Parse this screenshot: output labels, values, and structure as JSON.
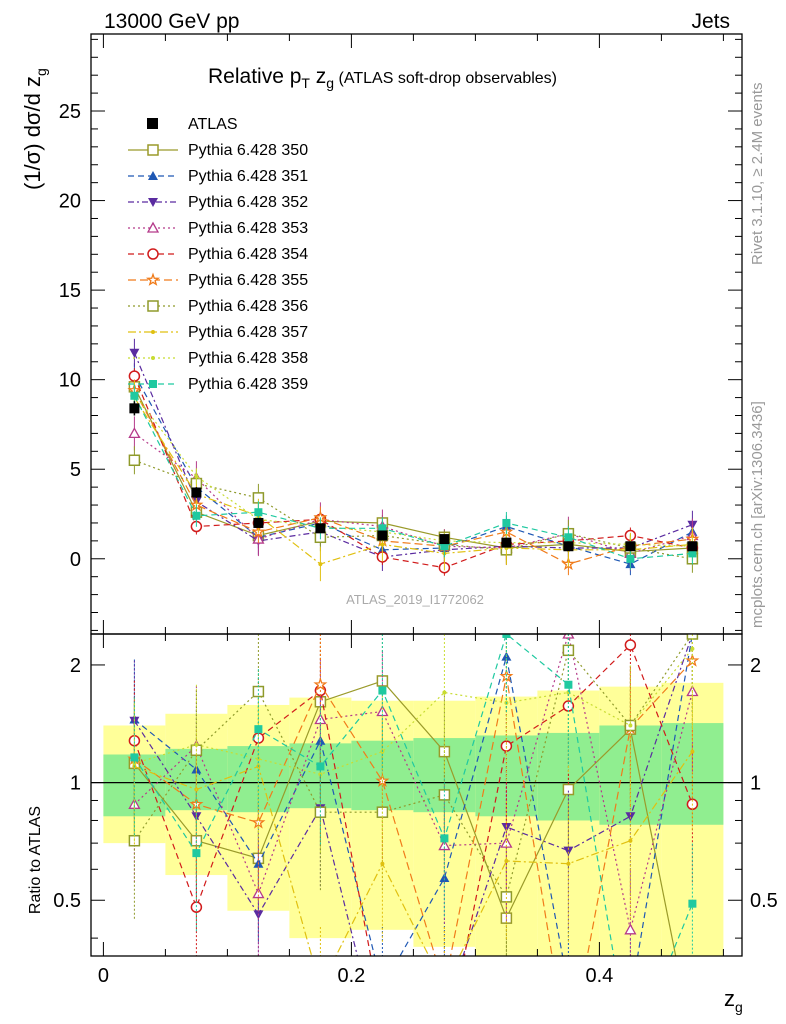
{
  "header": {
    "energy": "13000 GeV pp",
    "category": "Jets"
  },
  "side_text": {
    "rivet": "Rivet 3.1.10, ≥ 2.4M events",
    "mcplots": "mcplots.cern.ch [arXiv:1306.3436]"
  },
  "analysis_ref": "ATLAS_2019_I1772062",
  "chart_data": {
    "type": "line",
    "title": {
      "main": "Relative p",
      "sub_T": "T",
      "mid": " z",
      "sub_g": "g",
      "tail": " (ATLAS soft-drop observables)"
    },
    "xlabel": {
      "base": "z",
      "sub": "g"
    },
    "ylabel_main": {
      "base": "(1/σ) dσ/d z",
      "sub": "g"
    },
    "ylabel_ratio": "Ratio to ATLAS",
    "x": [
      0.025,
      0.075,
      0.125,
      0.175,
      0.225,
      0.275,
      0.325,
      0.375,
      0.425,
      0.475
    ],
    "x_ticks": [
      "0",
      "0.2",
      "0.4"
    ],
    "x_tick_values": [
      0,
      0.2,
      0.4
    ],
    "xlim": [
      -0.01,
      0.515
    ],
    "main_ylim": [
      -4.2,
      29.3
    ],
    "main_y_ticks": [
      "0",
      "5",
      "10",
      "15",
      "20",
      "25"
    ],
    "main_y_tick_values": [
      0,
      5,
      10,
      15,
      20,
      25
    ],
    "ratio_ylim": [
      0.36,
      2.4
    ],
    "ratio_y_ticks": [
      "0.5",
      "1",
      "2"
    ],
    "ratio_y_tick_values": [
      0.5,
      1,
      2
    ],
    "ratio_log": true,
    "data": {
      "name": "ATLAS",
      "values": [
        8.4,
        3.7,
        2.0,
        1.7,
        1.3,
        1.1,
        0.9,
        0.7,
        0.7,
        0.7
      ],
      "errors": [
        0.4,
        0.3,
        0.2,
        0.2,
        0.2,
        0.2,
        0.2,
        0.2,
        0.2,
        0.2
      ]
    },
    "bands": {
      "green_colour": "#90ee90",
      "yellow_colour": "#ffff99",
      "inner_lo": [
        0.82,
        0.85,
        0.84,
        0.86,
        0.85,
        0.84,
        0.82,
        0.8,
        0.78,
        0.78
      ],
      "inner_hi": [
        1.18,
        1.22,
        1.24,
        1.26,
        1.28,
        1.3,
        1.32,
        1.34,
        1.4,
        1.42
      ],
      "outer_lo": [
        0.7,
        0.58,
        0.47,
        0.4,
        0.42,
        0.38,
        0.36,
        0.36,
        0.36,
        0.36
      ],
      "outer_hi": [
        1.4,
        1.5,
        1.58,
        1.65,
        1.62,
        1.62,
        1.66,
        1.72,
        1.76,
        1.8
      ]
    },
    "series": [
      {
        "name": "Pythia 6.428 350",
        "color": "#9a9a2a",
        "marker": "square-open",
        "dash": "",
        "values": [
          9.6,
          2.6,
          1.3,
          2.1,
          2.0,
          1.2,
          0.6,
          0.8,
          0.4,
          0.6
        ],
        "ratio": [
          1.12,
          0.71,
          0.64,
          1.61,
          1.82,
          1.2,
          0.45,
          0.96,
          1.37,
          0.22
        ]
      },
      {
        "name": "Pythia 6.428 351",
        "color": "#1f58b4",
        "marker": "triangle-up",
        "dash": "6,4",
        "values": [
          10.3,
          4.0,
          1.2,
          2.0,
          0.5,
          0.6,
          1.8,
          0.7,
          -0.3,
          1.5
        ],
        "ratio": [
          1.45,
          1.08,
          0.62,
          1.28,
          0.3,
          0.57,
          2.1,
          0.3,
          0.28,
          2.4
        ]
      },
      {
        "name": "Pythia 6.428 352",
        "color": "#5a2ba0",
        "marker": "triangle-down",
        "dash": "6,3,2,3",
        "values": [
          11.5,
          3.2,
          1.0,
          1.5,
          0.1,
          0.5,
          0.7,
          0.6,
          0.6,
          1.9
        ],
        "ratio": [
          1.44,
          0.82,
          0.46,
          0.86,
          0.2,
          0.26,
          0.77,
          0.67,
          0.82,
          2.4
        ]
      },
      {
        "name": "Pythia 6.428 353",
        "color": "#b53a8a",
        "marker": "triangle-up-open",
        "dash": "2,3",
        "values": [
          7.0,
          4.5,
          1.1,
          2.2,
          1.8,
          0.7,
          0.6,
          1.4,
          0.3,
          1.3
        ],
        "ratio": [
          0.88,
          1.24,
          0.52,
          1.45,
          1.52,
          0.69,
          0.7,
          2.4,
          0.42,
          1.71
        ]
      },
      {
        "name": "Pythia 6.428 354",
        "color": "#d11b1b",
        "marker": "circle-open",
        "dash": "6,4",
        "values": [
          10.2,
          1.8,
          2.0,
          2.2,
          0.1,
          -0.5,
          0.8,
          1.0,
          1.3,
          0.6
        ],
        "ratio": [
          1.28,
          0.48,
          1.3,
          1.72,
          0.25,
          0.2,
          1.24,
          1.57,
          2.25,
          0.88
        ]
      },
      {
        "name": "Pythia 6.428 355",
        "color": "#f07b1a",
        "marker": "star",
        "dash": "8,4",
        "values": [
          9.4,
          3.0,
          1.5,
          2.3,
          1.0,
          0.7,
          1.5,
          -0.3,
          0.7,
          1.1
        ],
        "ratio": [
          1.15,
          0.88,
          0.79,
          1.78,
          1.01,
          0.3,
          1.87,
          0.2,
          1.38,
          2.05
        ]
      },
      {
        "name": "Pythia 6.428 356",
        "color": "#8f9a2b",
        "marker": "square-open",
        "dash": "2,3",
        "values": [
          5.5,
          4.2,
          3.4,
          1.2,
          1.3,
          0.8,
          0.5,
          1.4,
          0.6,
          0.0
        ],
        "ratio": [
          0.71,
          1.21,
          1.71,
          0.84,
          0.84,
          0.93,
          0.51,
          2.18,
          1.4,
          2.4
        ]
      },
      {
        "name": "Pythia 6.428 357",
        "color": "#e0c010",
        "marker": "dot",
        "dash": "8,3,2,3",
        "values": [
          9.0,
          3.6,
          2.4,
          -0.3,
          0.8,
          0.3,
          0.6,
          0.5,
          0.5,
          0.8
        ],
        "ratio": [
          1.1,
          0.96,
          1.1,
          0.3,
          0.62,
          0.3,
          0.63,
          0.62,
          0.71,
          1.2
        ]
      },
      {
        "name": "Pythia 6.428 358",
        "color": "#c8dc32",
        "marker": "dot",
        "dash": "2,3",
        "values": [
          9.2,
          4.6,
          2.2,
          1.8,
          1.5,
          1.0,
          0.9,
          0.9,
          0.8,
          0.7
        ],
        "ratio": [
          1.12,
          1.25,
          1.15,
          1.05,
          1.2,
          1.7,
          1.6,
          1.7,
          1.4,
          2.2
        ]
      },
      {
        "name": "Pythia 6.428 359",
        "color": "#1fc9a0",
        "marker": "square",
        "dash": "6,4",
        "values": [
          9.1,
          2.4,
          2.6,
          1.7,
          1.7,
          0.7,
          2.0,
          1.2,
          0.0,
          0.3
        ],
        "ratio": [
          1.16,
          0.66,
          1.37,
          1.1,
          1.72,
          0.72,
          2.4,
          1.78,
          0.2,
          0.49
        ]
      }
    ]
  }
}
